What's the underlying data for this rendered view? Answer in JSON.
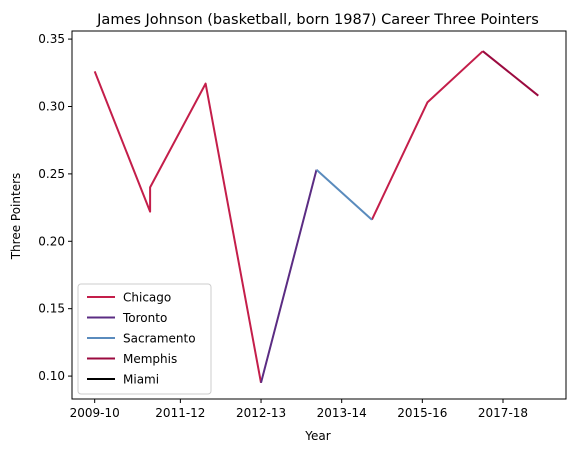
{
  "chart_data": {
    "type": "line",
    "title": "James Johnson (basketball, born 1987) Career Three Pointers",
    "xlabel": "Year",
    "ylabel": "Three Pointers",
    "x_ticks": [
      "2009-10",
      "2011-12",
      "2012-13",
      "2013-14",
      "2015-16",
      "2017-18"
    ],
    "x_tick_positions": [
      0,
      1.7,
      3.3,
      4.9,
      6.5,
      8.1
    ],
    "xlim": [
      -0.45,
      9.35
    ],
    "y_ticks": [
      0.1,
      0.15,
      0.2,
      0.25,
      0.3,
      0.35
    ],
    "ylim": [
      0.083,
      0.356
    ],
    "grid": false,
    "legend_position": "lower-left",
    "series": [
      {
        "name": "Chicago",
        "color": "#c41e4a",
        "points": [
          [
            0,
            0.326
          ],
          [
            1.1,
            0.222
          ],
          [
            1.1,
            0.24
          ],
          [
            2.2,
            0.317
          ],
          [
            3.3,
            0.095
          ]
        ]
      },
      {
        "name": "Toronto",
        "color": "#5b2c83",
        "points": [
          [
            3.3,
            0.095
          ],
          [
            4.4,
            0.253
          ]
        ]
      },
      {
        "name": "Sacramento",
        "color": "#5a8bbd",
        "points": [
          [
            4.4,
            0.253
          ],
          [
            5.5,
            0.216
          ]
        ]
      },
      {
        "name": "Memphis",
        "color": "#9b0a3f",
        "points": [
          [
            7.7,
            0.341
          ],
          [
            8.8,
            0.308
          ]
        ]
      },
      {
        "name": "Miami",
        "color": "#000000",
        "points": []
      }
    ],
    "extra_segments": [
      {
        "color": "#c41e4a",
        "points": [
          [
            5.5,
            0.216
          ],
          [
            6.6,
            0.303
          ],
          [
            7.7,
            0.341
          ]
        ]
      }
    ]
  }
}
